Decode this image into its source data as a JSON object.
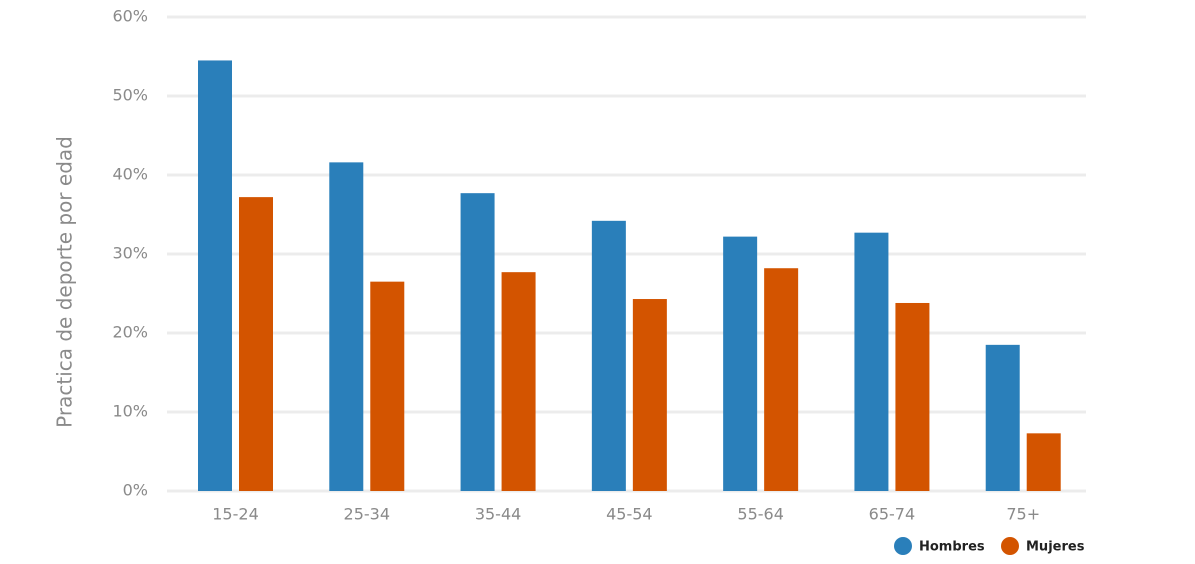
{
  "chart_data": {
    "type": "bar",
    "y_label": "Practica de deporte por edad",
    "categories": [
      "15-24",
      "25-34",
      "35-44",
      "45-54",
      "55-64",
      "65-74",
      "75+"
    ],
    "series": [
      {
        "name": "Hombres",
        "color": "#2a7fba",
        "values": [
          54.5,
          41.6,
          37.7,
          34.2,
          32.2,
          32.7,
          18.5
        ]
      },
      {
        "name": "Mujeres",
        "color": "#d35400",
        "values": [
          37.2,
          26.5,
          27.7,
          24.3,
          28.2,
          23.8,
          7.3
        ]
      }
    ],
    "ylim": [
      0,
      60
    ],
    "yticks": [
      {
        "value": 0,
        "label": "0%"
      },
      {
        "value": 10,
        "label": "10%"
      },
      {
        "value": 20,
        "label": "20%"
      },
      {
        "value": 30,
        "label": "30%"
      },
      {
        "value": 40,
        "label": "40%"
      },
      {
        "value": 50,
        "label": "50%"
      },
      {
        "value": 60,
        "label": "60%"
      }
    ],
    "grid": true,
    "legend": "bottom-right"
  }
}
